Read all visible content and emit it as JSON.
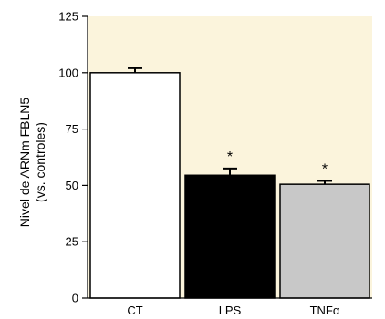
{
  "chart_data": {
    "type": "bar",
    "title": "",
    "xlabel": "",
    "ylabel": [
      "Nivel de ARNm FBLN5",
      "(vs. controles)"
    ],
    "ylim": [
      0,
      125
    ],
    "yticks": [
      0,
      25,
      50,
      75,
      100,
      125
    ],
    "grid": false,
    "legend": "none",
    "categories": [
      "CT",
      "LPS",
      "TNFα"
    ],
    "values": [
      100,
      54.5,
      50.5
    ],
    "errors": [
      2,
      3,
      1.5
    ],
    "significance": [
      "",
      "*",
      "*"
    ],
    "colors": {
      "plot_background": "#fbf4dc",
      "bars": [
        "#ffffff",
        "#000000",
        "#c8c8c8"
      ],
      "bar_stroke": "#000000"
    }
  }
}
